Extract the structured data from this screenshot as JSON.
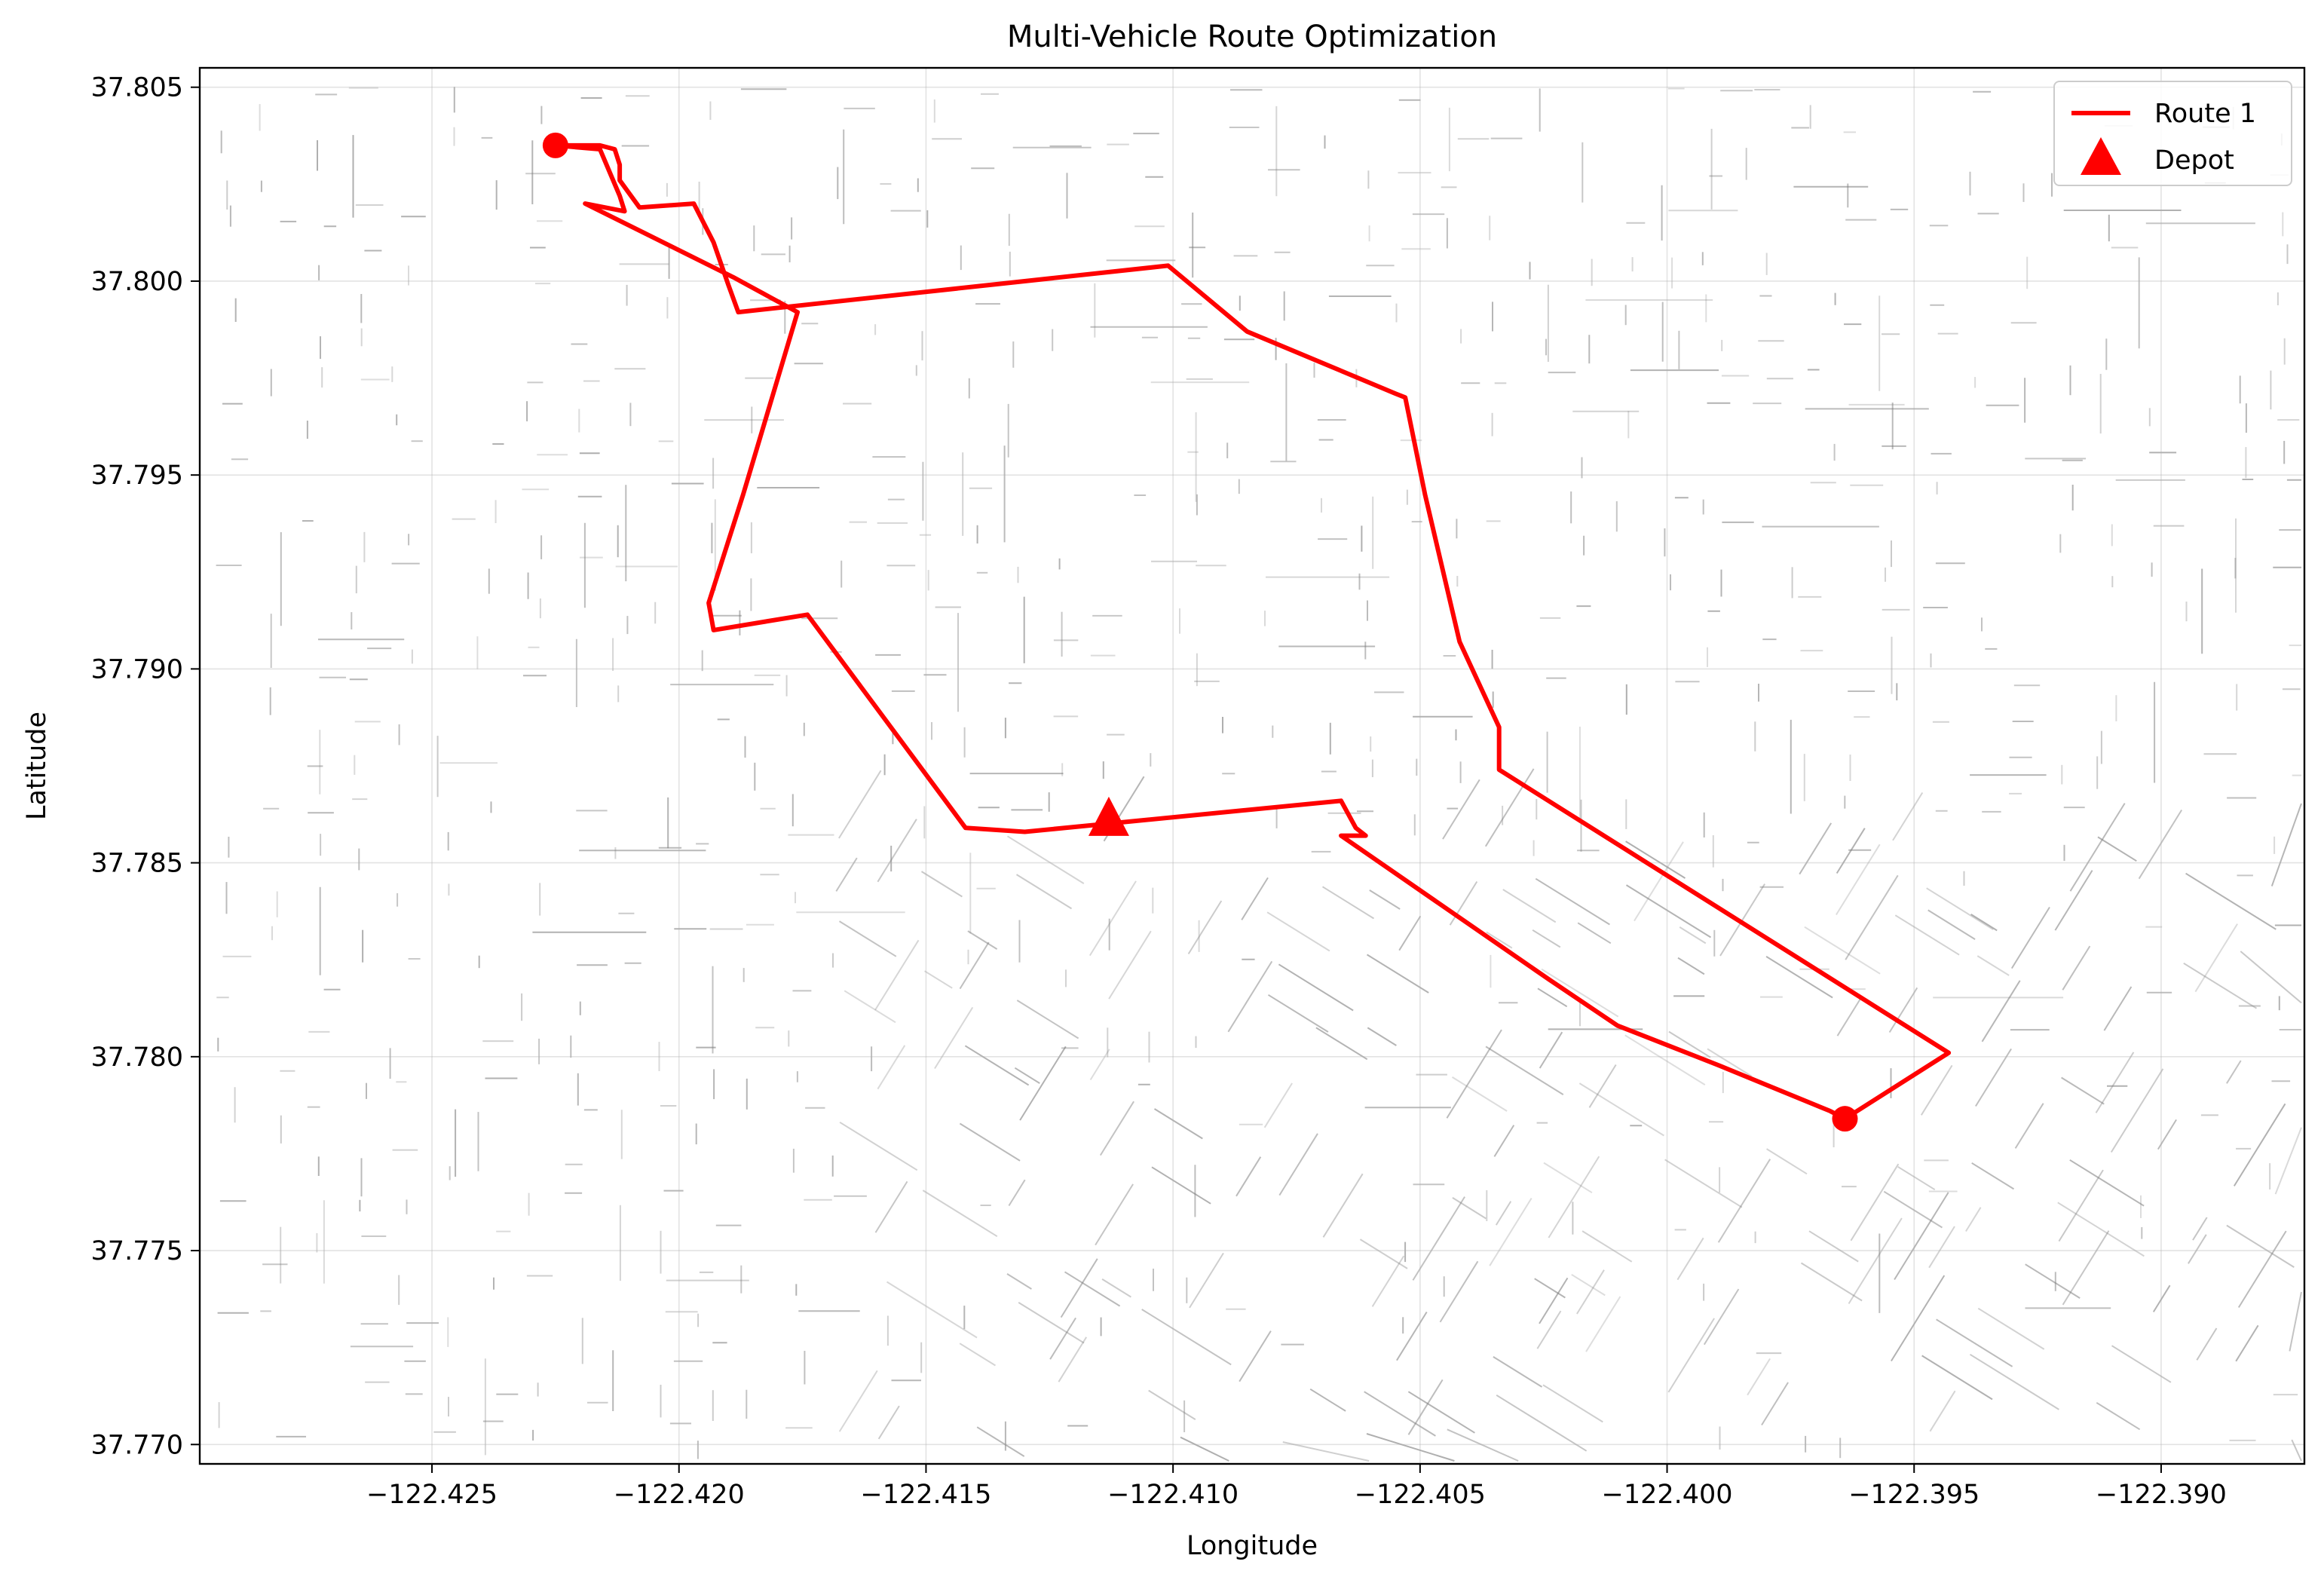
{
  "chart_data": {
    "type": "line",
    "title": "Multi-Vehicle Route Optimization",
    "xlabel": "Longitude",
    "ylabel": "Latitude",
    "xlim": [
      -122.4297,
      -122.3871
    ],
    "ylim": [
      37.7695,
      37.8055
    ],
    "x_ticks": [
      -122.425,
      -122.42,
      -122.415,
      -122.41,
      -122.405,
      -122.4,
      -122.395,
      -122.39
    ],
    "x_tick_labels": [
      "−122.425",
      "−122.420",
      "−122.415",
      "−122.410",
      "−122.405",
      "−122.400",
      "−122.395",
      "−122.390"
    ],
    "y_ticks": [
      37.77,
      37.775,
      37.78,
      37.785,
      37.79,
      37.795,
      37.8,
      37.805
    ],
    "y_tick_labels": [
      "37.770",
      "37.775",
      "37.780",
      "37.785",
      "37.790",
      "37.795",
      "37.800",
      "37.805"
    ],
    "grid": true,
    "legend_position": "top-right",
    "background": "street network (gray line segments)",
    "series": [
      {
        "name": "Route 1",
        "color": "#ff0000",
        "x": [
          -122.4225,
          -122.4216,
          -122.4213,
          -122.4212,
          -122.4212,
          -122.4208,
          -122.4197,
          -122.4193,
          -122.419,
          -122.4188,
          -122.4101,
          -122.4085,
          -122.4055,
          -122.4053,
          -122.4049,
          -122.4042,
          -122.4034,
          -122.4034,
          -122.3943,
          -122.3964,
          -122.3967,
          -122.399,
          -122.4008,
          -122.401,
          -122.4024,
          -122.4066,
          -122.4061,
          -122.4063,
          -122.4066,
          -122.413,
          -122.4142,
          -122.4174,
          -122.4193,
          -122.4194,
          -122.4187,
          -122.4176,
          -122.4189,
          -122.4219,
          -122.4211,
          -122.4212,
          -122.4214,
          -122.4216,
          -122.4225
        ],
        "y": [
          37.8035,
          37.8035,
          37.8034,
          37.803,
          37.8026,
          37.8019,
          37.802,
          37.801,
          37.7999,
          37.7992,
          37.8004,
          37.7987,
          37.7971,
          37.797,
          37.7945,
          37.7907,
          37.7885,
          37.7874,
          37.7801,
          37.7784,
          37.7786,
          37.7798,
          37.7807,
          37.7808,
          37.782,
          37.7857,
          37.7857,
          37.7859,
          37.7866,
          37.7858,
          37.7859,
          37.7914,
          37.791,
          37.7917,
          37.7945,
          37.7992,
          37.8001,
          37.802,
          37.8018,
          37.8022,
          37.8028,
          37.8034,
          37.8035
        ]
      }
    ],
    "markers": [
      {
        "name": "route-start",
        "x": -122.4225,
        "y": 37.8035,
        "shape": "circle",
        "color": "#ff0000"
      },
      {
        "name": "route-end",
        "x": -122.3964,
        "y": 37.7784,
        "shape": "circle",
        "color": "#ff0000"
      },
      {
        "name": "Depot",
        "x": -122.4113,
        "y": 37.7861,
        "shape": "triangle",
        "color": "#ff0000"
      }
    ],
    "legend": [
      {
        "label": "Route 1",
        "shape": "line",
        "color": "#ff0000"
      },
      {
        "label": "Depot",
        "shape": "triangle",
        "color": "#ff0000"
      }
    ]
  }
}
